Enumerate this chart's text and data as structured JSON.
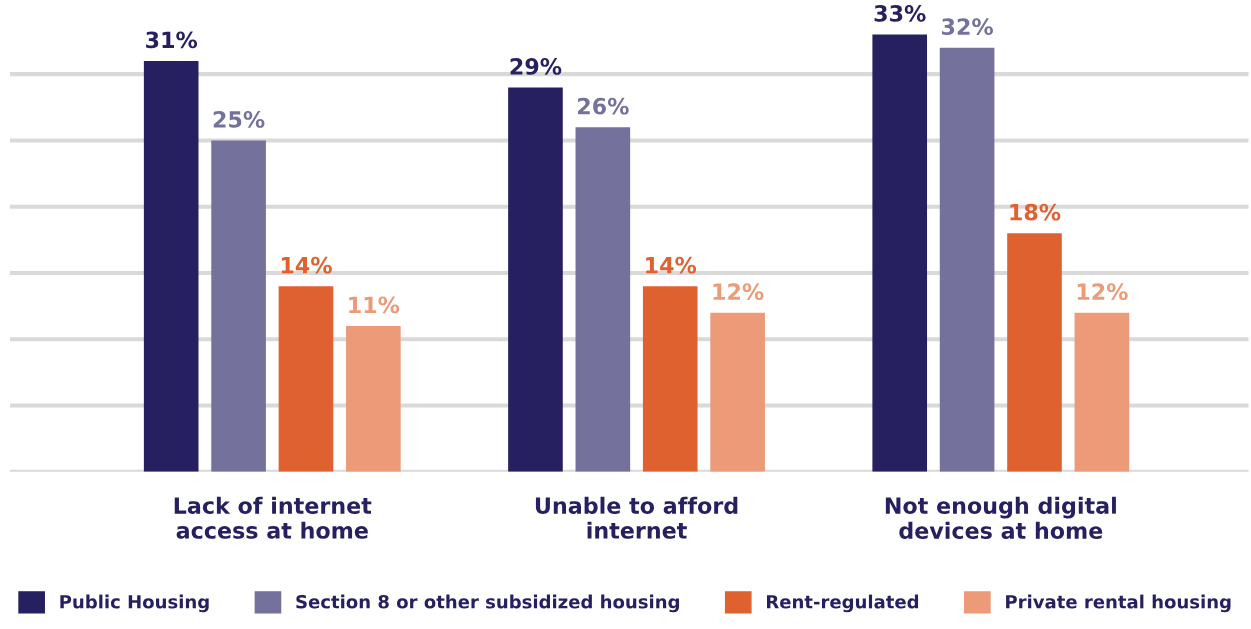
{
  "chart_data": {
    "type": "bar",
    "categories": [
      "Lack of internet\naccess at home",
      "Unable to afford\ninternet",
      "Not enough digital\ndevices at home"
    ],
    "series": [
      {
        "name": "Public Housing",
        "color": "#272060",
        "values": [
          31,
          29,
          33
        ],
        "value_labels": [
          "31%",
          "29%",
          "33%"
        ]
      },
      {
        "name": "Section 8 or other subsidized housing",
        "color": "#74719c",
        "values": [
          25,
          26,
          32
        ],
        "value_labels": [
          "25%",
          "26%",
          "32%"
        ]
      },
      {
        "name": "Rent-regulated",
        "color": "#e06130",
        "values": [
          14,
          14,
          18
        ],
        "value_labels": [
          "14%",
          "14%",
          "18%"
        ]
      },
      {
        "name": "Private rental housing",
        "color": "#ec9a78",
        "values": [
          11,
          12,
          12
        ],
        "value_labels": [
          "11%",
          "12%",
          "12%"
        ]
      }
    ],
    "grid": "y",
    "legend": "bottom",
    "tick_labels": "x"
  }
}
